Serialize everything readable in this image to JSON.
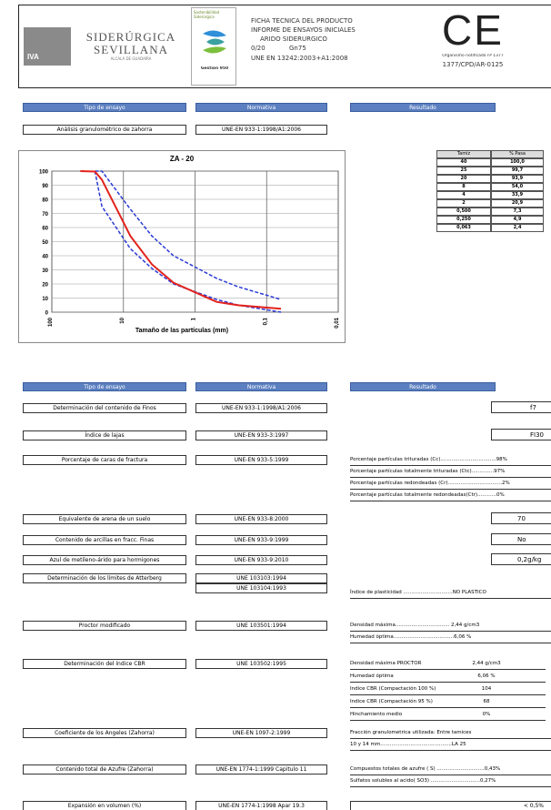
{
  "header": {
    "company": {
      "logo": "IVA",
      "name_1": "SIDERÚRGICA",
      "name_2": "SEVILLANA",
      "location": "ALCALÁ DE GUADAÍRA"
    },
    "badge": {
      "title": "Sostenibilidad Siderúrgica",
      "label": "Gestión 950"
    },
    "product": {
      "title": "FICHA TÉCNICA DEL PRODUCTO",
      "subtitle": "INFORME DE ENSAYOS INICIALES",
      "material": "ÁRIDO SIDERURGICO",
      "size": "0/20",
      "grade": "Gn75",
      "standard": "UNE EN 13242:2003+A1:2008"
    },
    "ce": {
      "mark": "CE",
      "body": "Organismo notificado nº 1377",
      "code": "1377/CPD/AR-0125"
    }
  },
  "section_1": {
    "headers": [
      "Tipo de ensayo",
      "Normativa",
      "Resultado"
    ],
    "test": "Análisis granulométrico de zahorra",
    "standard": "UNE-EN 933-1:1998/A1:2006"
  },
  "chart_data": {
    "type": "line",
    "title": "ZA - 20",
    "x_label": "Tamaño de las partículas (mm)",
    "x_scale": "log",
    "x": [
      40,
      25,
      20,
      8,
      4,
      2,
      0.5,
      0.25,
      0.063
    ],
    "xlim": [
      100,
      0.01
    ],
    "xticks": [
      100,
      10,
      1,
      {
        "value": 0.1,
        "label": "0,1"
      },
      {
        "value": 0.01,
        "label": "0,01"
      }
    ],
    "ylim": [
      0,
      100
    ],
    "yticks": [
      0,
      10,
      20,
      30,
      40,
      50,
      60,
      70,
      80,
      90,
      100
    ],
    "grid": true,
    "series": [
      {
        "color": "#2b3ad6",
        "dash": true,
        "values": [
          null,
          100,
          100,
          73,
          54,
          40,
          24,
          18,
          9
        ]
      },
      {
        "color": "#2b3ad6",
        "dash": true,
        "values": [
          null,
          100,
          75,
          45,
          31,
          20,
          9,
          5,
          0
        ]
      },
      {
        "color": "#e3211c",
        "dash": false,
        "values": [
          100,
          99.7,
          93.9,
          54.0,
          33.9,
          20.9,
          7.3,
          4.9,
          2.4
        ]
      }
    ]
  },
  "sieve_table": {
    "headers": [
      "Tamiz",
      "% Pasa"
    ],
    "rows": [
      [
        "40",
        "100,0"
      ],
      [
        "25",
        "99,7"
      ],
      [
        "20",
        "93,9"
      ],
      [
        "8",
        "54,0"
      ],
      [
        "4",
        "33,9"
      ],
      [
        "2",
        "20,9"
      ],
      [
        "0,500",
        "7,3"
      ],
      [
        "0,250",
        "4,9"
      ],
      [
        "0,063",
        "2,4"
      ]
    ]
  },
  "section_2": {
    "headers": [
      "Tipo de ensayo",
      "Normativa",
      "Resultado"
    ],
    "rows": [
      {
        "test": "Determinación del contenido de Finos",
        "standards": [
          "UNE-EN 933-1:1998/A1:2006"
        ],
        "results": [
          "f7"
        ]
      },
      {
        "test": "Índice de lajas",
        "standards": [
          "UNE-EN 933-3:1997"
        ],
        "results": [
          "FI30"
        ]
      },
      {
        "test": "Porcentaje de caras de fractura",
        "standards": [
          "UNE-EN 933-5:1999"
        ],
        "results": [
          "Porcentaje partículas trituradas (Cc)...................................98%",
          "Porcentaje partículas totalmente trituradas (Ctc)..............97%",
          "Porcentaje partículas redondeadas (Cr)..................................2%",
          "Porcentaje partículas totalmente redondeadas(Ctr)............0%"
        ]
      },
      {
        "test": "Equivalente de arena de un suelo",
        "standards": [
          "UNE-EN 933-8:2000"
        ],
        "results": [
          "70"
        ]
      },
      {
        "test": "Contenido de arcillas en fracc. Finas",
        "standards": [
          "UNE-EN 933-9:1999"
        ],
        "results": [
          "No"
        ]
      },
      {
        "test": "Azul de metileno-árido para hormigones",
        "standards": [
          "UNE-EN 933-9:2010"
        ],
        "results": [
          "0,2g/kg"
        ]
      },
      {
        "test": "Determinación de los límites de Atterberg",
        "standards": [
          "UNE 103103:1994",
          "UNE 103104:1993"
        ],
        "results": [
          "Índice de plasticidad ...............................NO PLASTICO"
        ]
      },
      {
        "test": "Proctor modificado",
        "standards": [
          "UNE 103501:1994"
        ],
        "results": [
          "Densidad máxima.................................. 2,44 g/cm3",
          "Humedad óptima......................................6,06 %"
        ]
      },
      {
        "test": "Determinación del índice CBR",
        "standards": [
          "UNE 103502:1995"
        ],
        "results": [
          [
            "Densidad máxima PROCTOR",
            "2,44 g/cm3"
          ],
          [
            "Humedad óptima",
            "6,06 %"
          ],
          [
            "Indice CBR (Compactación 100 %)",
            "104"
          ],
          [
            "Indice CBR (Compactación 95 %)",
            "68"
          ],
          [
            "Hinchamiento medio",
            "0%"
          ]
        ]
      },
      {
        "test": "Coeficiente de los Angeles (Zahorra)",
        "standards": [
          "UNE-EN 1097-2:1999"
        ],
        "results": [
          "Fracción granulometrica utilizada: Entre tamices",
          "10 y 14 mm.............................................LA 25"
        ]
      },
      {
        "test": "Contenido total de Azufre (Zahorra)",
        "standards": [
          "UNE-EN 1774-1:1999 Capitulo 11"
        ],
        "results": [
          "Compuestos totales de azufre ( S) ..............................0,43%",
          "Sulfatos solubles al acido( SO3) ...............................0,27%"
        ]
      },
      {
        "test": "Expansión en volumen (%)",
        "standards": [
          "UNE-EN 1774-1:1998 Apar 19.3"
        ],
        "results": [
          "< 0,5%"
        ]
      }
    ]
  }
}
